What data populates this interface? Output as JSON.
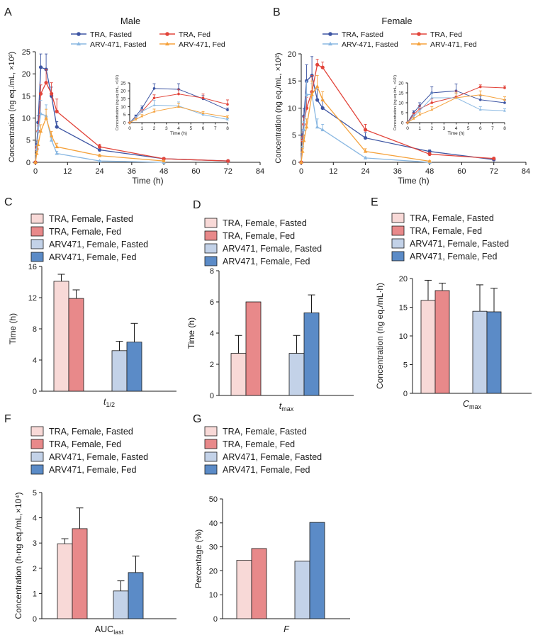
{
  "colors": {
    "tra_fasted": "#3d55a3",
    "tra_fed": "#e2443a",
    "arv_fasted": "#8ab8e2",
    "arv_fed": "#f5a13a",
    "bar_tra_fasted": "#f8d9d7",
    "bar_tra_fed": "#e8898a",
    "bar_arv_fasted": "#c3d2e8",
    "bar_arv_fed": "#5b8bc7",
    "axis": "#1a1a1a"
  },
  "chart_data": [
    {
      "id": "A",
      "panel_label": "A",
      "type": "line",
      "title": "Male",
      "xlabel": "Time (h)",
      "ylabel": "Concentration (ng eq./mL, ×10²)",
      "xlim": [
        0,
        84
      ],
      "ylim": [
        0,
        25
      ],
      "xticks": [
        0,
        12,
        24,
        36,
        48,
        60,
        72,
        84
      ],
      "yticks": [
        0,
        5,
        10,
        15,
        20,
        25
      ],
      "legend": [
        "TRA, Fasted",
        "TRA, Fed",
        "ARV-471, Fasted",
        "ARV-471, Fed"
      ],
      "series": [
        {
          "name": "TRA, Fasted",
          "marker": "circle",
          "x": [
            0,
            0.5,
            1,
            2,
            4,
            6,
            8,
            24,
            48,
            72
          ],
          "y": [
            0,
            4,
            9,
            21.5,
            21,
            15,
            8,
            2.8,
            0.8,
            0.3
          ],
          "err": [
            0,
            0.8,
            1.5,
            3,
            3.5,
            2,
            1.2,
            0.5,
            0.2,
            0.1
          ]
        },
        {
          "name": "TRA, Fed",
          "marker": "circle",
          "x": [
            0,
            0.5,
            1,
            2,
            4,
            6,
            8,
            24,
            48,
            72
          ],
          "y": [
            0,
            3,
            7,
            15.5,
            18,
            15.5,
            11.5,
            3.5,
            0.8,
            0.3
          ],
          "err": [
            0,
            0.6,
            1.2,
            2,
            3,
            2.5,
            2.8,
            0.6,
            0.2,
            0.1
          ]
        },
        {
          "name": "ARV-471, Fasted",
          "marker": "triangle",
          "x": [
            0,
            0.5,
            1,
            2,
            4,
            6,
            8,
            24,
            48
          ],
          "y": [
            0,
            3,
            7,
            11,
            10.5,
            5,
            2,
            0.3,
            0
          ],
          "err": [
            0,
            0.8,
            1.5,
            3,
            2.5,
            1,
            0.5,
            0.1,
            0
          ]
        },
        {
          "name": "ARV-471, Fed",
          "marker": "triangle",
          "x": [
            0,
            0.5,
            1,
            2,
            4,
            6,
            8,
            24,
            48
          ],
          "y": [
            0,
            2,
            4,
            7,
            10,
            6,
            3.5,
            1.5,
            0.3
          ],
          "err": [
            0,
            0.5,
            1,
            1.5,
            2,
            1,
            0.8,
            0.3,
            0.1
          ]
        }
      ],
      "inset": {
        "xlabel": "Time (h)",
        "ylabel": "Concentration (ng eq./mL, ×10²)",
        "xlim": [
          0,
          8
        ],
        "ylim": [
          0,
          25
        ],
        "xticks": [
          0,
          1,
          2,
          3,
          4,
          5,
          6,
          7,
          8
        ],
        "yticks": [
          0,
          5,
          10,
          15,
          20,
          25
        ]
      }
    },
    {
      "id": "B",
      "panel_label": "B",
      "type": "line",
      "title": "Female",
      "xlabel": "Time (h)",
      "ylabel": "Concentration (ng eq./mL, ×10²)",
      "xlim": [
        0,
        84
      ],
      "ylim": [
        0,
        20
      ],
      "xticks": [
        0,
        12,
        24,
        36,
        48,
        60,
        72,
        84
      ],
      "yticks": [
        0,
        5,
        10,
        15,
        20
      ],
      "legend": [
        "TRA, Fasted",
        "TRA, Fed",
        "ARV-471, Fasted",
        "ARV-471, Fed"
      ],
      "series": [
        {
          "name": "TRA, Fasted",
          "marker": "circle",
          "x": [
            0,
            0.5,
            1,
            2,
            4,
            6,
            8,
            24,
            48,
            72
          ],
          "y": [
            0,
            5,
            8.5,
            15,
            16,
            11.5,
            10,
            4.5,
            2,
            0.5
          ],
          "err": [
            0,
            1,
            1.5,
            3,
            3.5,
            2,
            1.5,
            1,
            0.3,
            0.2
          ]
        },
        {
          "name": "TRA, Fed",
          "marker": "circle",
          "x": [
            0,
            0.5,
            1,
            2,
            4,
            6,
            8,
            24,
            48,
            72
          ],
          "y": [
            0,
            4,
            7,
            10,
            13,
            18,
            17.5,
            6,
            1.5,
            0.7
          ],
          "err": [
            0,
            0.8,
            1.5,
            2,
            3,
            1,
            1,
            1,
            0.3,
            0.2
          ]
        },
        {
          "name": "ARV-471, Fasted",
          "marker": "triangle",
          "x": [
            0,
            0.5,
            1,
            2,
            4,
            6,
            8,
            24,
            48
          ],
          "y": [
            0,
            3,
            6,
            12.5,
            12.5,
            6.5,
            6,
            0.8,
            0
          ],
          "err": [
            0,
            1,
            1.5,
            2.5,
            2,
            1.5,
            1,
            0.2,
            0
          ]
        },
        {
          "name": "ARV-471, Fed",
          "marker": "triangle",
          "x": [
            0,
            0.5,
            1,
            2,
            4,
            6,
            8,
            24,
            48
          ],
          "y": [
            0,
            2,
            4,
            6.5,
            12.5,
            14,
            11.5,
            2,
            0.2
          ],
          "err": [
            0,
            0.5,
            1,
            1.5,
            2.5,
            2,
            1.5,
            0.5,
            0.1
          ]
        }
      ],
      "inset": {
        "xlabel": "Time (h)",
        "ylabel": "Concentration (ng eq./mL, ×10²)",
        "xlim": [
          0,
          8
        ],
        "ylim": [
          0,
          20
        ],
        "xticks": [
          0,
          1,
          2,
          3,
          4,
          5,
          6,
          7,
          8
        ],
        "yticks": [
          0,
          5,
          10,
          15,
          20
        ]
      }
    },
    {
      "id": "C",
      "panel_label": "C",
      "type": "bar",
      "xlabel_main": "t",
      "xlabel_sub": "1/2",
      "ylabel": "Time (h)",
      "ylim": [
        0,
        16
      ],
      "yticks": [
        0,
        4,
        8,
        12,
        16
      ],
      "legend": [
        "TRA, Female, Fasted",
        "TRA, Female, Fed",
        "ARV471, Female, Fasted",
        "ARV471, Female, Fed"
      ],
      "values": [
        14.1,
        11.9,
        5.2,
        6.3
      ],
      "errors": [
        0.9,
        1.1,
        1.2,
        2.4
      ]
    },
    {
      "id": "D",
      "panel_label": "D",
      "type": "bar",
      "xlabel_main": "t",
      "xlabel_sub": "max",
      "ylabel": "Time (h)",
      "ylim": [
        0,
        8
      ],
      "yticks": [
        0,
        2,
        4,
        6,
        8
      ],
      "legend": [
        "TRA, Female, Fasted",
        "TRA, Female, Fed",
        "ARV471, Female, Fasted",
        "ARV471, Female, Fed"
      ],
      "values": [
        2.7,
        6.0,
        2.7,
        5.3
      ],
      "errors": [
        1.15,
        0,
        1.15,
        1.15
      ]
    },
    {
      "id": "E",
      "panel_label": "E",
      "type": "bar",
      "xlabel_main": "C",
      "xlabel_sub": "max",
      "ylabel": "Concentration (ng eq./mL·h)",
      "ylim": [
        0,
        20
      ],
      "yticks": [
        0,
        5,
        10,
        15,
        20
      ],
      "legend": [
        "TRA, Female, Fasted",
        "TRA, Female, Fed",
        "ARV471, Female, Fasted",
        "ARV471, Female, Fed"
      ],
      "values": [
        16.2,
        17.9,
        14.3,
        14.2
      ],
      "errors": [
        3.5,
        1.3,
        4.6,
        4.1
      ]
    },
    {
      "id": "F",
      "panel_label": "F",
      "type": "bar",
      "xlabel_main": "AUC",
      "xlabel_sub": "last",
      "ylabel": "Concentration (h·ng eq./mL,×10⁴)",
      "ylim": [
        0,
        5
      ],
      "yticks": [
        0,
        1,
        2,
        3,
        4,
        5
      ],
      "legend": [
        "TRA, Female, Fasted",
        "TRA, Female, Fed",
        "ARV471, Female, Fasted",
        "ARV471, Female, Fed"
      ],
      "values": [
        2.97,
        3.57,
        1.1,
        1.83
      ],
      "errors": [
        0.2,
        0.82,
        0.4,
        0.65
      ]
    },
    {
      "id": "G",
      "panel_label": "G",
      "type": "bar",
      "xlabel_main": "F",
      "xlabel_sub": "",
      "ylabel": "Percentage (%)",
      "ylim": [
        0,
        50
      ],
      "yticks": [
        0,
        10,
        20,
        30,
        40,
        50
      ],
      "legend": [
        "TRA, Female, Fasted",
        "TRA, Female, Fed",
        "ARV471, Female, Fasted",
        "ARV471, Female, Fed"
      ],
      "values": [
        24.4,
        29.3,
        24.0,
        40.2
      ],
      "errors": [
        0,
        0,
        0,
        0
      ]
    }
  ]
}
